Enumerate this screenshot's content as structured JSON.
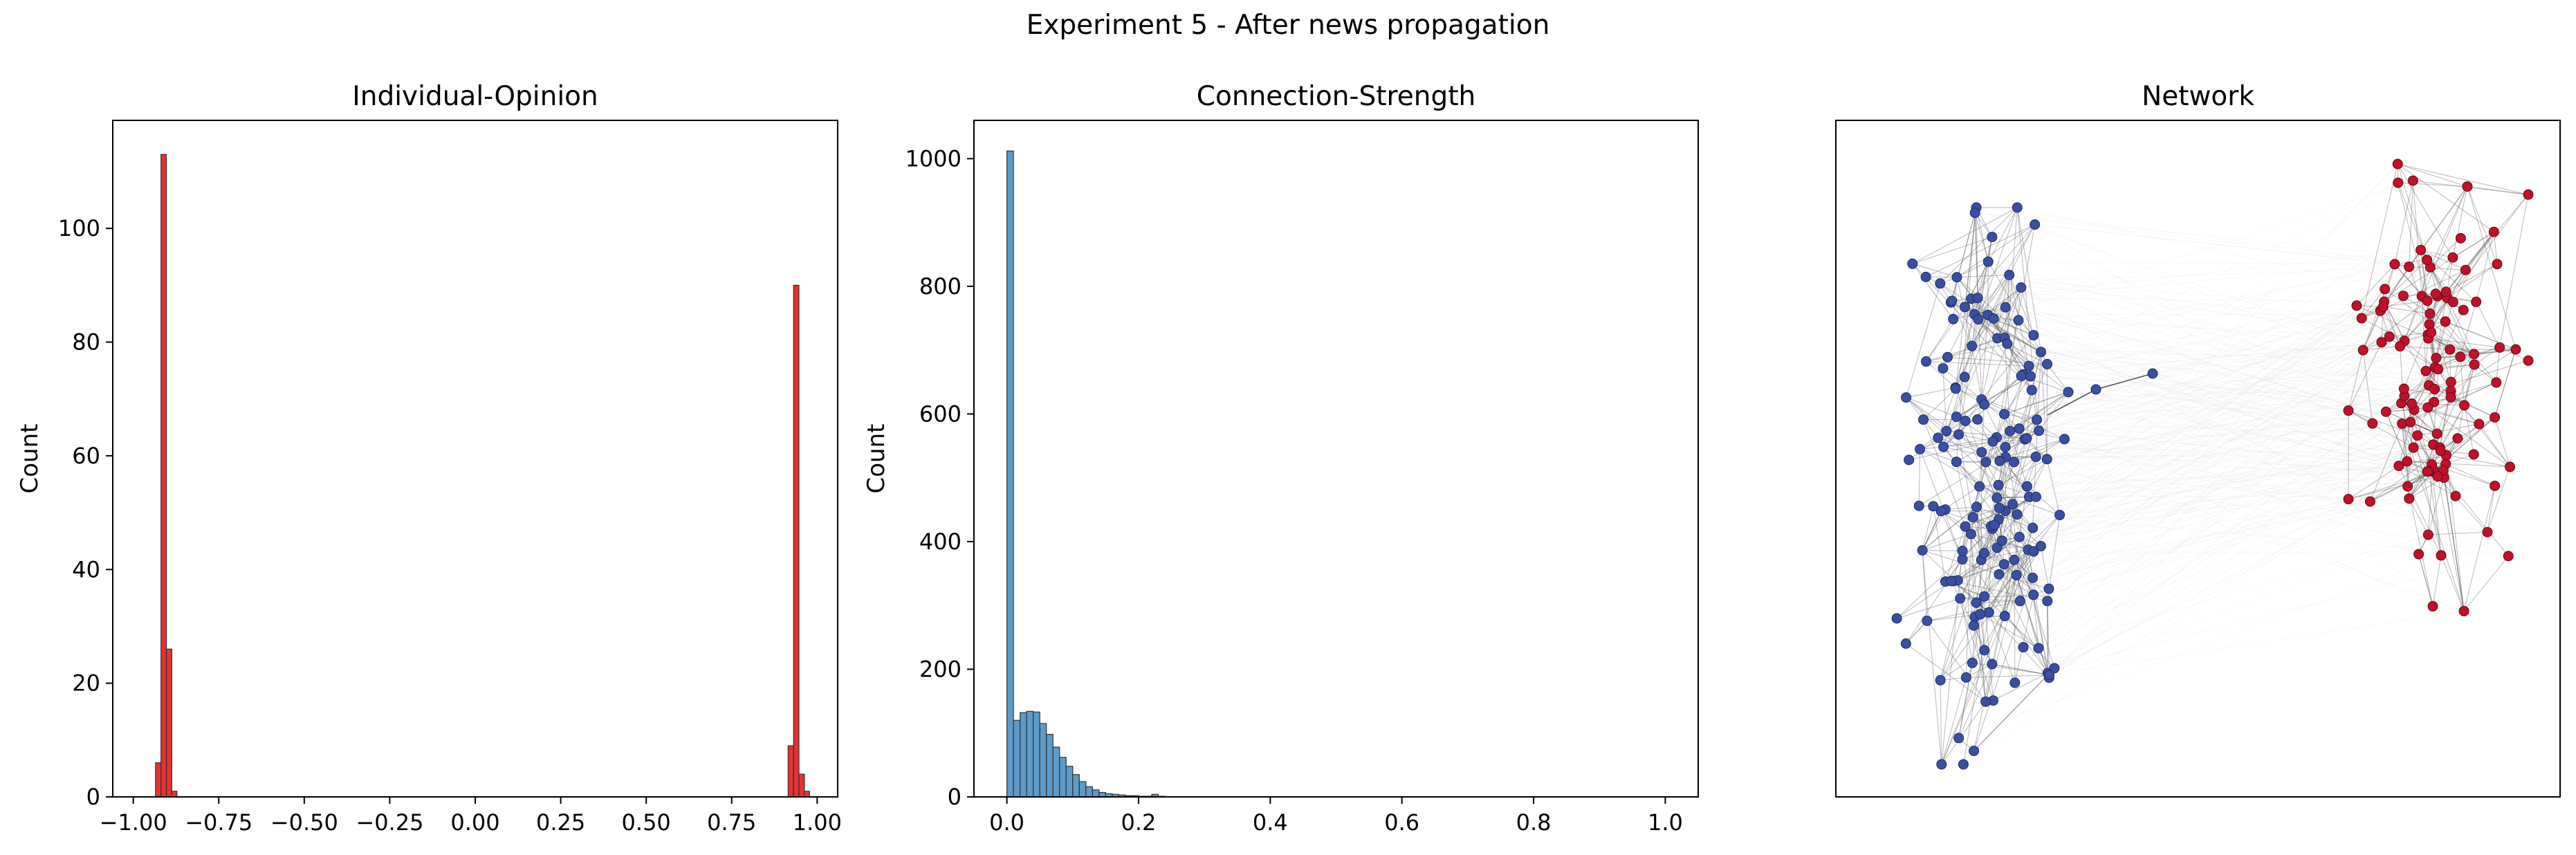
{
  "figure": {
    "suptitle": "Experiment 5 - After news propagation"
  },
  "chart_data": [
    {
      "type": "bar",
      "subtype": "histogram",
      "title": "Individual-Opinion",
      "xlabel": "",
      "ylabel": "Count",
      "xlim": [
        -1.06,
        1.06
      ],
      "ylim": [
        0,
        119
      ],
      "xticks": [
        -1.0,
        -0.75,
        -0.5,
        -0.25,
        0.0,
        0.25,
        0.5,
        0.75,
        1.0
      ],
      "xtick_labels": [
        "−1.00",
        "−0.75",
        "−0.50",
        "−0.25",
        "0.00",
        "0.25",
        "0.50",
        "0.75",
        "1.00"
      ],
      "yticks": [
        0,
        20,
        40,
        60,
        80,
        100
      ],
      "bin_width": 0.0157,
      "bins": [
        {
          "x0": -0.935,
          "count": 6
        },
        {
          "x0": -0.919,
          "count": 113
        },
        {
          "x0": -0.903,
          "count": 26
        },
        {
          "x0": -0.888,
          "count": 1
        },
        {
          "x0": 0.915,
          "count": 9
        },
        {
          "x0": 0.931,
          "count": 90
        },
        {
          "x0": 0.947,
          "count": 4
        },
        {
          "x0": 0.962,
          "count": 1
        }
      ],
      "color": "#e41a1c"
    },
    {
      "type": "bar",
      "subtype": "histogram",
      "title": "Connection-Strength",
      "xlabel": "",
      "ylabel": "Count",
      "xlim": [
        -0.05,
        1.05
      ],
      "ylim": [
        0,
        1060
      ],
      "xticks": [
        0.0,
        0.2,
        0.4,
        0.6,
        0.8,
        1.0
      ],
      "xtick_labels": [
        "0.0",
        "0.2",
        "0.4",
        "0.6",
        "0.8",
        "1.0"
      ],
      "yticks": [
        0,
        200,
        400,
        600,
        800,
        1000
      ],
      "bin_width": 0.01,
      "bins": [
        {
          "x0": 0.0,
          "count": 1012
        },
        {
          "x0": 0.01,
          "count": 120
        },
        {
          "x0": 0.02,
          "count": 132
        },
        {
          "x0": 0.03,
          "count": 134
        },
        {
          "x0": 0.04,
          "count": 133
        },
        {
          "x0": 0.05,
          "count": 115
        },
        {
          "x0": 0.06,
          "count": 98
        },
        {
          "x0": 0.07,
          "count": 78
        },
        {
          "x0": 0.08,
          "count": 62
        },
        {
          "x0": 0.09,
          "count": 48
        },
        {
          "x0": 0.1,
          "count": 35
        },
        {
          "x0": 0.11,
          "count": 24
        },
        {
          "x0": 0.12,
          "count": 16
        },
        {
          "x0": 0.13,
          "count": 11
        },
        {
          "x0": 0.14,
          "count": 7
        },
        {
          "x0": 0.15,
          "count": 5
        },
        {
          "x0": 0.16,
          "count": 4
        },
        {
          "x0": 0.17,
          "count": 3
        },
        {
          "x0": 0.18,
          "count": 2
        },
        {
          "x0": 0.19,
          "count": 2
        },
        {
          "x0": 0.2,
          "count": 1
        },
        {
          "x0": 0.21,
          "count": 1
        },
        {
          "x0": 0.22,
          "count": 4
        },
        {
          "x0": 0.23,
          "count": 1
        }
      ],
      "color": "#4a90c4"
    },
    {
      "type": "scatter",
      "subtype": "network graph",
      "title": "Network",
      "axes_visible": false,
      "clusters": [
        {
          "name": "",
          "color": "#3b4fa0",
          "node_count": 152
        },
        {
          "name": "",
          "color": "#c0102a",
          "node_count": 108
        }
      ],
      "bridge_nodes": 2
    }
  ]
}
